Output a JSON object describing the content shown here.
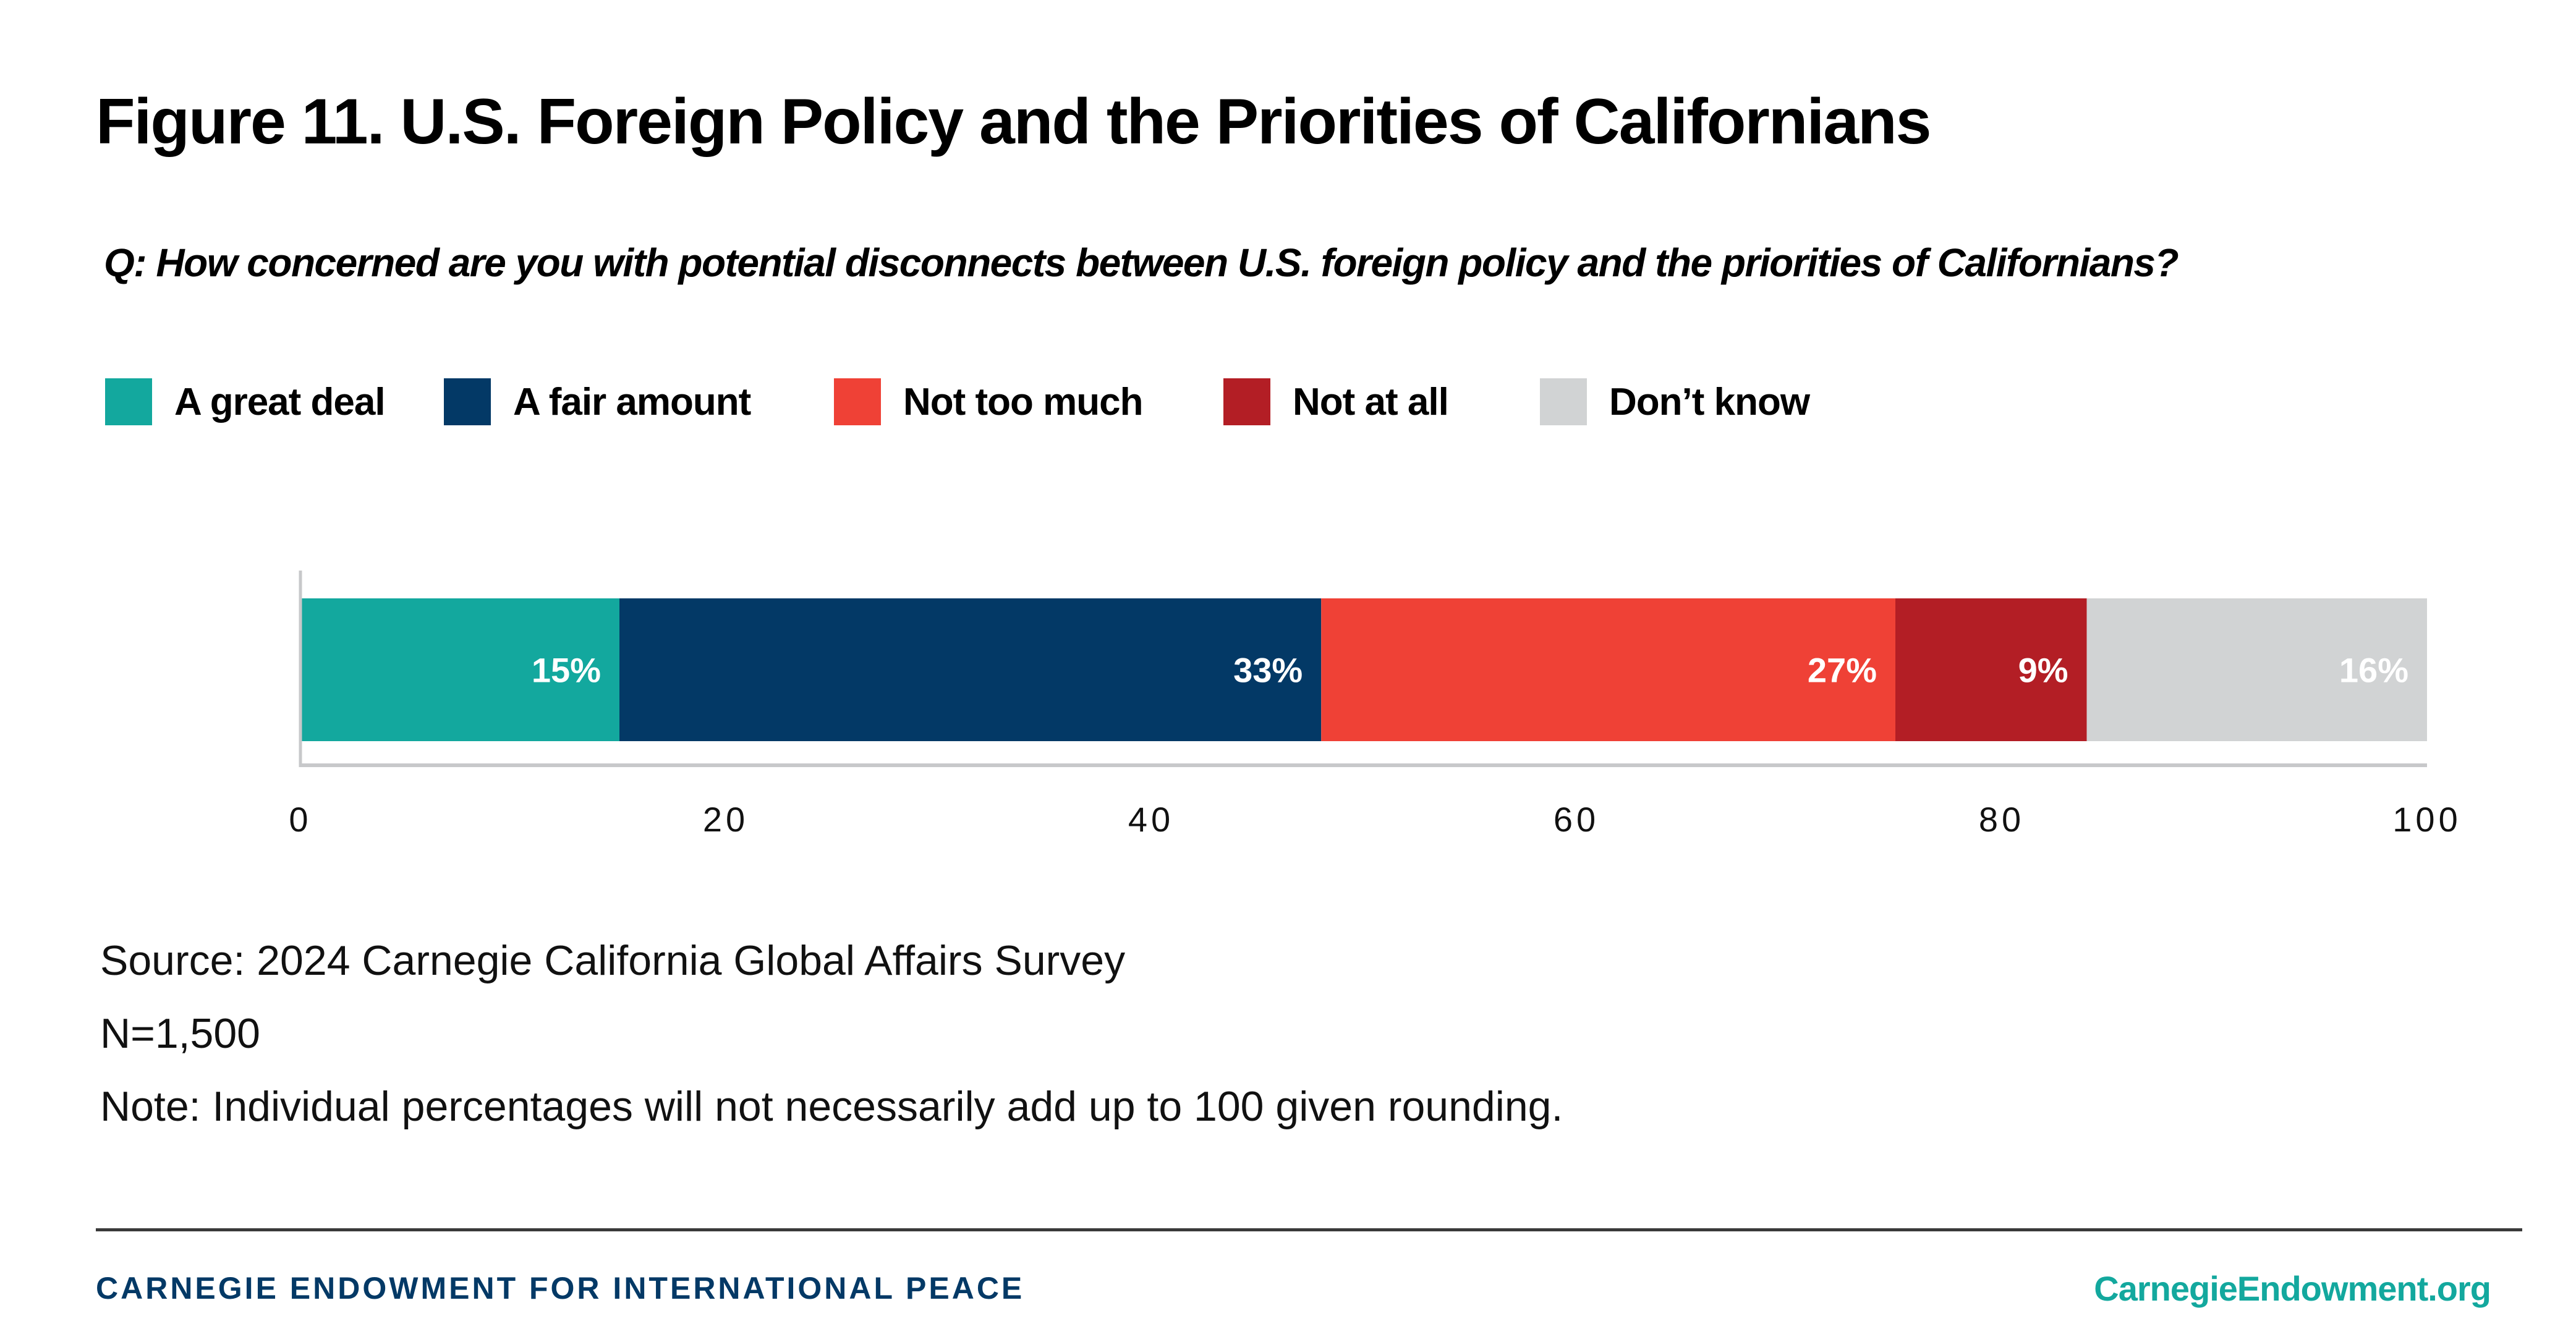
{
  "title": "Figure 11. U.S. Foreign Policy and the Priorities of Californians",
  "question": "Q: How concerned are you with potential disconnects between U.S. foreign policy and the priorities of Californians?",
  "legend": [
    {
      "label": "A great deal",
      "color": "#13A89E"
    },
    {
      "label": "A fair amount",
      "color": "#033966"
    },
    {
      "label": "Not too much",
      "color": "#EF4136"
    },
    {
      "label": "Not at all",
      "color": "#B31E25"
    },
    {
      "label": "Don’t know",
      "color": "#D1D3D4"
    }
  ],
  "chart_data": {
    "type": "bar",
    "orientation": "horizontal-stacked",
    "title": "Figure 11. U.S. Foreign Policy and the Priorities of Californians",
    "subtitle": "Q: How concerned are you with potential disconnects between U.S. foreign policy and the priorities of Californians?",
    "categories": [
      ""
    ],
    "series": [
      {
        "name": "A great deal",
        "values": [
          15
        ],
        "label": "15%",
        "color": "#13A89E"
      },
      {
        "name": "A fair amount",
        "values": [
          33
        ],
        "label": "33%",
        "color": "#033966"
      },
      {
        "name": "Not too much",
        "values": [
          27
        ],
        "label": "27%",
        "color": "#EF4136"
      },
      {
        "name": "Not at all",
        "values": [
          9
        ],
        "label": "9%",
        "color": "#B31E25"
      },
      {
        "name": "Don’t know",
        "values": [
          16
        ],
        "label": "16%",
        "color": "#D1D3D4"
      }
    ],
    "xlim": [
      0,
      100
    ],
    "xticks": [
      0,
      20,
      40,
      60,
      80,
      100
    ],
    "xlabel": "",
    "ylabel": "",
    "grid": false,
    "legend_position": "top-left",
    "axis_color": "#C7C8CA",
    "data_label_color": "#FFFFFF"
  },
  "notes": {
    "source": "Source: 2024 Carnegie California Global Affairs Survey",
    "n": "N=1,500",
    "note": "Note: Individual percentages will not necessarily add up to 100 given rounding."
  },
  "footer": {
    "org": "CARNEGIE ENDOWMENT FOR INTERNATIONAL PEACE",
    "url": "CarnegieEndowment.org"
  }
}
